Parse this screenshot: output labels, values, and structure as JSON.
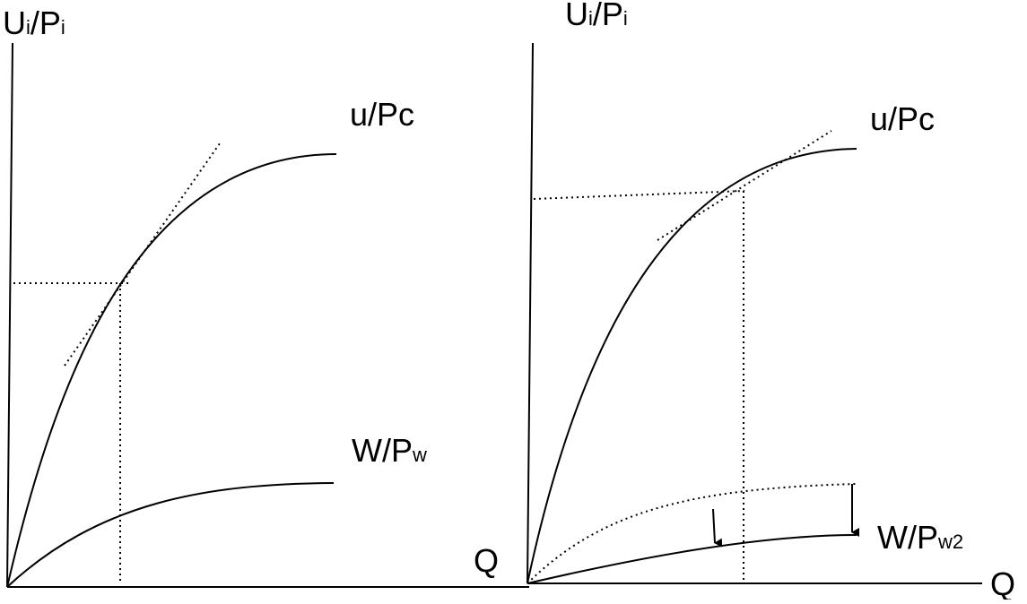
{
  "left_panel": {
    "y_axis_label": {
      "main": "U",
      "sub1": "i",
      "mid": "/P",
      "sub2": "i"
    },
    "curve_u_label": "u/Pc",
    "curve_w_label": {
      "main": "W/P",
      "sub": "w"
    },
    "x_axis_label": "Q"
  },
  "right_panel": {
    "y_axis_label": {
      "main": "U",
      "sub1": "i",
      "mid": "/P",
      "sub2": "i"
    },
    "curve_u_label": "u/Pc",
    "curve_w_label": {
      "main": "W/P",
      "sub": "w2"
    },
    "x_axis_label": "Q"
  },
  "colors": {
    "ink": "#000000",
    "background": "#ffffff"
  }
}
